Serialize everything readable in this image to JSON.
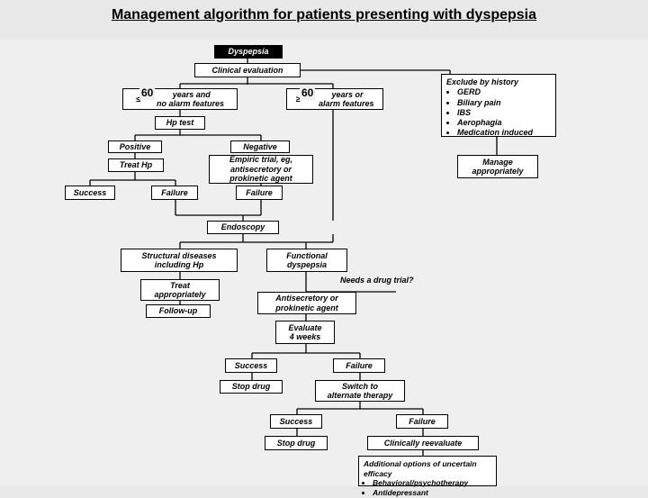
{
  "title": "Management algorithm for patients presenting with dyspepsia",
  "type": "flowchart",
  "background_color": "#e8e8e8",
  "diagram_background": "#efefef",
  "box_bg": "#ffffff",
  "border_color": "#000000",
  "title_color": "#000000",
  "font_family": "Arial",
  "nodes": {
    "dyspepsia": "Dyspepsia",
    "clinical_eval": "Clinical evaluation",
    "age_no_alarm_a": "≤",
    "age_no_alarm_num": "60",
    "age_no_alarm_b": " years and\nno alarm features",
    "age_alarm_a": "≥ ",
    "age_alarm_num": "60",
    "age_alarm_b": " years or\nalarm features",
    "hp_test": "Hp test",
    "positive": "Positive",
    "negative": "Negative",
    "treat_hp": "Treat Hp",
    "empiric": "Empiric trial, eg,\nantisecretory or\nprokinetic agent",
    "success1": "Success",
    "failure1": "Failure",
    "failure1b": "Failure",
    "endoscopy": "Endoscopy",
    "structural": "Structural diseases\nincluding Hp",
    "functional": "Functional\ndyspepsia",
    "treat_approp": "Treat\nappropriately",
    "drug_trial_label": "Needs a drug trial?",
    "antisecretory": "Antisecretory or\nprokinetic agent",
    "followup": "Follow-up",
    "evaluate": "Evaluate\n4 weeks",
    "success2": "Success",
    "failure2": "Failure",
    "stop_drug": "Stop drug",
    "switch": "Switch to\nalternate therapy",
    "success3": "Success",
    "failure3": "Failure",
    "stop_drug2": "Stop drug",
    "clin_reeval": "Clinically reevaluate",
    "exclude_title": "Exclude by history",
    "exclude_items": [
      "GERD",
      "Biliary pain",
      "IBS",
      "Aerophagia",
      "Medication induced"
    ],
    "manage_approp": "Manage\nappropriately",
    "additional_title": "Additional options of\nuncertain efficacy",
    "additional_items": [
      "Behavioral/psychotherapy",
      "Antidepressant"
    ]
  }
}
